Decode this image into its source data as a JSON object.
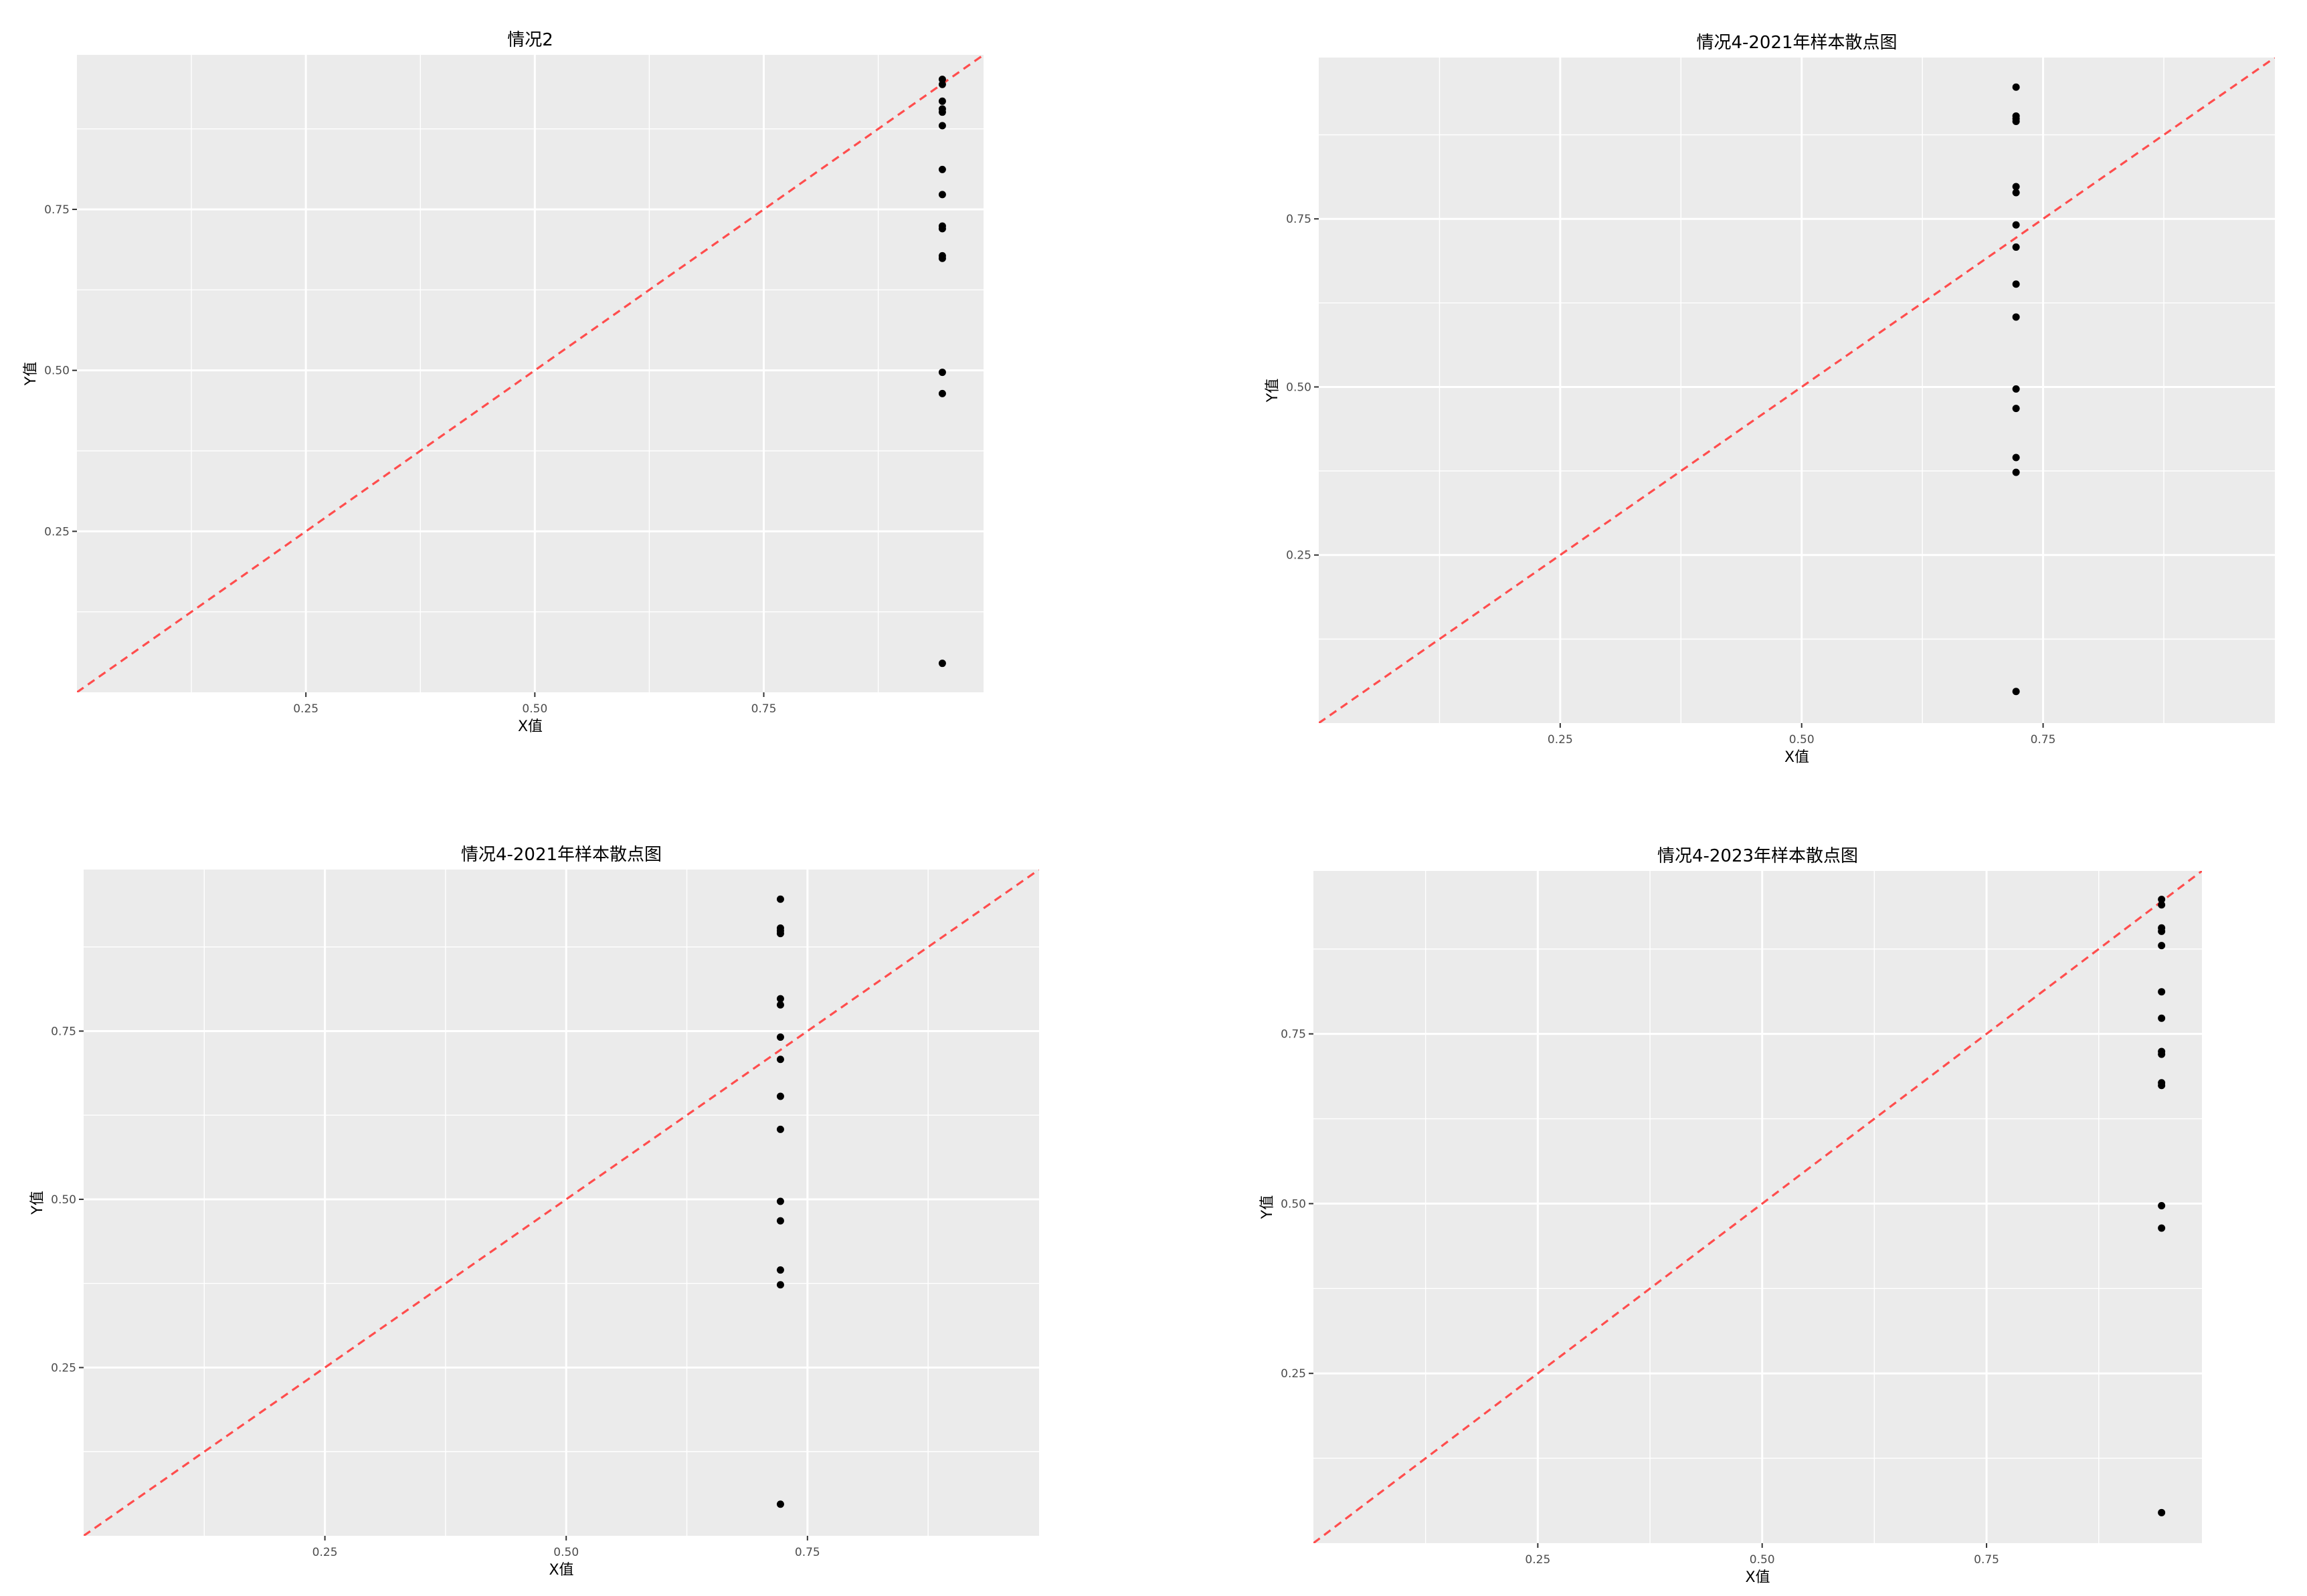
{
  "chart_data": [
    {
      "type": "scatter",
      "title": "情况2",
      "xlabel": "X值",
      "ylabel": "Y值",
      "xlim": [
        0.0,
        0.99
      ],
      "ylim": [
        0.0,
        0.99
      ],
      "xticks": [
        "0.25",
        "0.50",
        "0.75"
      ],
      "yticks": [
        "0.25",
        "0.50",
        "0.75"
      ],
      "xtick_values": [
        0.25,
        0.5,
        0.75
      ],
      "ytick_values": [
        0.25,
        0.5,
        0.75
      ],
      "grid": true,
      "reference_line": {
        "slope": 1,
        "intercept": 0,
        "style": "dashed",
        "color": "#ff4d4d"
      },
      "point_color": "#000000",
      "points": [
        {
          "x": 0.945,
          "y": 0.952
        },
        {
          "x": 0.945,
          "y": 0.944
        },
        {
          "x": 0.945,
          "y": 0.918
        },
        {
          "x": 0.945,
          "y": 0.906
        },
        {
          "x": 0.945,
          "y": 0.901
        },
        {
          "x": 0.945,
          "y": 0.88
        },
        {
          "x": 0.945,
          "y": 0.812
        },
        {
          "x": 0.945,
          "y": 0.773
        },
        {
          "x": 0.945,
          "y": 0.724
        },
        {
          "x": 0.945,
          "y": 0.72
        },
        {
          "x": 0.945,
          "y": 0.678
        },
        {
          "x": 0.945,
          "y": 0.674
        },
        {
          "x": 0.945,
          "y": 0.497
        },
        {
          "x": 0.945,
          "y": 0.464
        },
        {
          "x": 0.945,
          "y": 0.045
        }
      ]
    },
    {
      "type": "scatter",
      "title": "情况4-2021年样本散点图",
      "xlabel": "X值",
      "ylabel": "Y值",
      "xlim": [
        0.0,
        0.99
      ],
      "ylim": [
        0.0,
        0.99
      ],
      "xticks": [
        "0.25",
        "0.50",
        "0.75"
      ],
      "yticks": [
        "0.25",
        "0.50",
        "0.75"
      ],
      "xtick_values": [
        0.25,
        0.5,
        0.75
      ],
      "ytick_values": [
        0.25,
        0.5,
        0.75
      ],
      "grid": true,
      "reference_line": {
        "slope": 1,
        "intercept": 0,
        "style": "dashed",
        "color": "#ff4d4d"
      },
      "point_color": "#000000",
      "points": [
        {
          "x": 0.722,
          "y": 0.946
        },
        {
          "x": 0.722,
          "y": 0.903
        },
        {
          "x": 0.722,
          "y": 0.899
        },
        {
          "x": 0.722,
          "y": 0.895
        },
        {
          "x": 0.722,
          "y": 0.798
        },
        {
          "x": 0.722,
          "y": 0.789
        },
        {
          "x": 0.722,
          "y": 0.741
        },
        {
          "x": 0.722,
          "y": 0.708
        },
        {
          "x": 0.722,
          "y": 0.653
        },
        {
          "x": 0.722,
          "y": 0.604
        },
        {
          "x": 0.722,
          "y": 0.497
        },
        {
          "x": 0.722,
          "y": 0.468
        },
        {
          "x": 0.722,
          "y": 0.395
        },
        {
          "x": 0.722,
          "y": 0.373
        },
        {
          "x": 0.722,
          "y": 0.047
        }
      ]
    },
    {
      "type": "scatter",
      "title": "情况4-2021年样本散点图",
      "xlabel": "X值",
      "ylabel": "Y值",
      "xlim": [
        0.0,
        0.99
      ],
      "ylim": [
        0.0,
        0.99
      ],
      "xticks": [
        "0.25",
        "0.50",
        "0.75"
      ],
      "yticks": [
        "0.25",
        "0.50",
        "0.75"
      ],
      "xtick_values": [
        0.25,
        0.5,
        0.75
      ],
      "ytick_values": [
        0.25,
        0.5,
        0.75
      ],
      "grid": true,
      "reference_line": {
        "slope": 1,
        "intercept": 0,
        "style": "dashed",
        "color": "#ff4d4d"
      },
      "point_color": "#000000",
      "points": [
        {
          "x": 0.722,
          "y": 0.946
        },
        {
          "x": 0.722,
          "y": 0.903
        },
        {
          "x": 0.722,
          "y": 0.899
        },
        {
          "x": 0.722,
          "y": 0.895
        },
        {
          "x": 0.722,
          "y": 0.798
        },
        {
          "x": 0.722,
          "y": 0.789
        },
        {
          "x": 0.722,
          "y": 0.741
        },
        {
          "x": 0.722,
          "y": 0.708
        },
        {
          "x": 0.722,
          "y": 0.653
        },
        {
          "x": 0.722,
          "y": 0.604
        },
        {
          "x": 0.722,
          "y": 0.497
        },
        {
          "x": 0.722,
          "y": 0.468
        },
        {
          "x": 0.722,
          "y": 0.395
        },
        {
          "x": 0.722,
          "y": 0.373
        },
        {
          "x": 0.722,
          "y": 0.047
        }
      ]
    },
    {
      "type": "scatter",
      "title": "情况4-2023年样本散点图",
      "xlabel": "X值",
      "ylabel": "Y值",
      "xlim": [
        0.0,
        0.99
      ],
      "ylim": [
        0.0,
        0.99
      ],
      "xticks": [
        "0.25",
        "0.50",
        "0.75"
      ],
      "yticks": [
        "0.25",
        "0.50",
        "0.75"
      ],
      "xtick_values": [
        0.25,
        0.5,
        0.75
      ],
      "ytick_values": [
        0.25,
        0.5,
        0.75
      ],
      "grid": true,
      "reference_line": {
        "slope": 1,
        "intercept": 0,
        "style": "dashed",
        "color": "#ff4d4d"
      },
      "point_color": "#000000",
      "points": [
        {
          "x": 0.945,
          "y": 0.948
        },
        {
          "x": 0.945,
          "y": 0.94
        },
        {
          "x": 0.945,
          "y": 0.906
        },
        {
          "x": 0.945,
          "y": 0.901
        },
        {
          "x": 0.945,
          "y": 0.88
        },
        {
          "x": 0.945,
          "y": 0.812
        },
        {
          "x": 0.945,
          "y": 0.773
        },
        {
          "x": 0.945,
          "y": 0.724
        },
        {
          "x": 0.945,
          "y": 0.72
        },
        {
          "x": 0.945,
          "y": 0.678
        },
        {
          "x": 0.945,
          "y": 0.674
        },
        {
          "x": 0.945,
          "y": 0.497
        },
        {
          "x": 0.945,
          "y": 0.464
        },
        {
          "x": 0.945,
          "y": 0.045
        }
      ]
    }
  ]
}
